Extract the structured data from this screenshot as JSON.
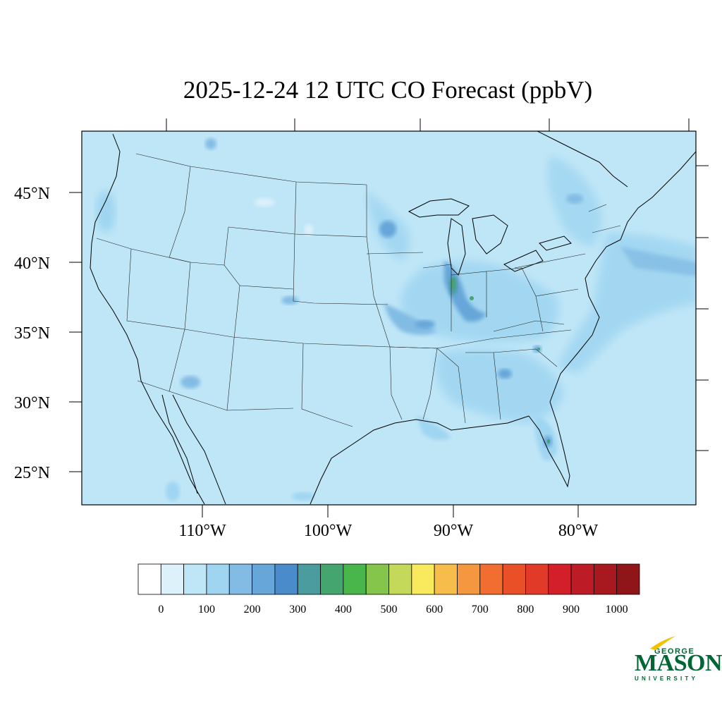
{
  "title": "2025-12-24 12 UTC CO Forecast (ppbV)",
  "map": {
    "background_fill": "#bfe6f7",
    "lat_labels": [
      "45°N",
      "40°N",
      "35°N",
      "30°N",
      "25°N"
    ],
    "lon_labels": [
      "110°W",
      "100°W",
      "90°W",
      "80°W"
    ]
  },
  "colorbar": {
    "colors": [
      "#ffffff",
      "#ddf1fb",
      "#bfe6f7",
      "#9fd5f1",
      "#82bce4",
      "#66a6d9",
      "#4a8ccb",
      "#4b9c9e",
      "#45a56f",
      "#48b64a",
      "#86c54b",
      "#c4d85a",
      "#f8e95d",
      "#f7bd4a",
      "#f5973e",
      "#f26d30",
      "#ea5028",
      "#e13a29",
      "#d21f29",
      "#bd1b26",
      "#a8181f",
      "#8f1518"
    ],
    "labels": [
      "0",
      "100",
      "200",
      "300",
      "400",
      "500",
      "600",
      "700",
      "800",
      "900",
      "1000"
    ]
  },
  "logo": {
    "line1": "GEORGE",
    "line2": "MASON",
    "line3": "UNIVERSITY"
  }
}
